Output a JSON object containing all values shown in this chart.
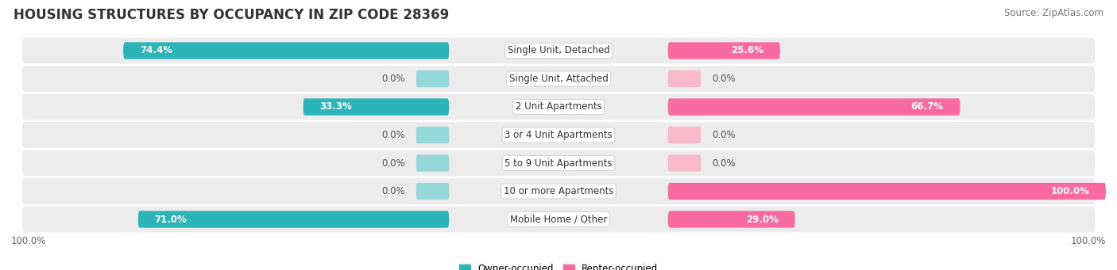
{
  "title": "HOUSING STRUCTURES BY OCCUPANCY IN ZIP CODE 28369",
  "source": "Source: ZipAtlas.com",
  "categories": [
    "Single Unit, Detached",
    "Single Unit, Attached",
    "2 Unit Apartments",
    "3 or 4 Unit Apartments",
    "5 to 9 Unit Apartments",
    "10 or more Apartments",
    "Mobile Home / Other"
  ],
  "owner_pct": [
    74.4,
    0.0,
    33.3,
    0.0,
    0.0,
    0.0,
    71.0
  ],
  "renter_pct": [
    25.6,
    0.0,
    66.7,
    0.0,
    0.0,
    100.0,
    29.0
  ],
  "owner_color": "#2bb5b8",
  "renter_color": "#f96ba0",
  "owner_color_light": "#95d8da",
  "renter_color_light": "#f9b8cc",
  "row_bg_color": "#ececec",
  "title_fontsize": 12,
  "label_fontsize": 8.5,
  "tick_fontsize": 8.5,
  "source_fontsize": 8.5,
  "pct_fontsize": 8.5
}
